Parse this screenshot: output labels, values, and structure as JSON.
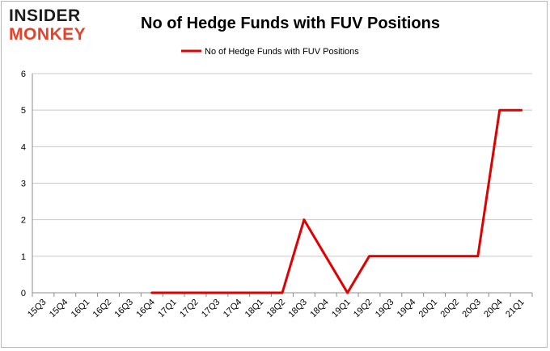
{
  "logo": {
    "line1": "INSIDER",
    "line2": "MONKEY"
  },
  "chart_data": {
    "type": "line",
    "title": "No of Hedge Funds with FUV Positions",
    "xlabel": "",
    "ylabel": "",
    "ylim": [
      0,
      6
    ],
    "yticks": [
      0,
      1,
      2,
      3,
      4,
      5,
      6
    ],
    "grid": true,
    "legend_position": "top-center",
    "categories": [
      "15Q3",
      "15Q4",
      "16Q1",
      "16Q2",
      "16Q3",
      "16Q4",
      "17Q1",
      "17Q2",
      "17Q3",
      "17Q4",
      "18Q1",
      "18Q2",
      "18Q3",
      "18Q4",
      "19Q1",
      "19Q2",
      "19Q3",
      "19Q4",
      "20Q1",
      "20Q2",
      "20Q3",
      "20Q4",
      "21Q1"
    ],
    "series": [
      {
        "name": "No of Hedge Funds with FUV Positions",
        "color": "#e00000",
        "values": [
          null,
          null,
          null,
          null,
          null,
          0,
          0,
          0,
          0,
          0,
          0,
          0,
          2,
          1,
          0,
          1,
          1,
          1,
          1,
          1,
          1,
          5,
          5
        ]
      }
    ]
  }
}
